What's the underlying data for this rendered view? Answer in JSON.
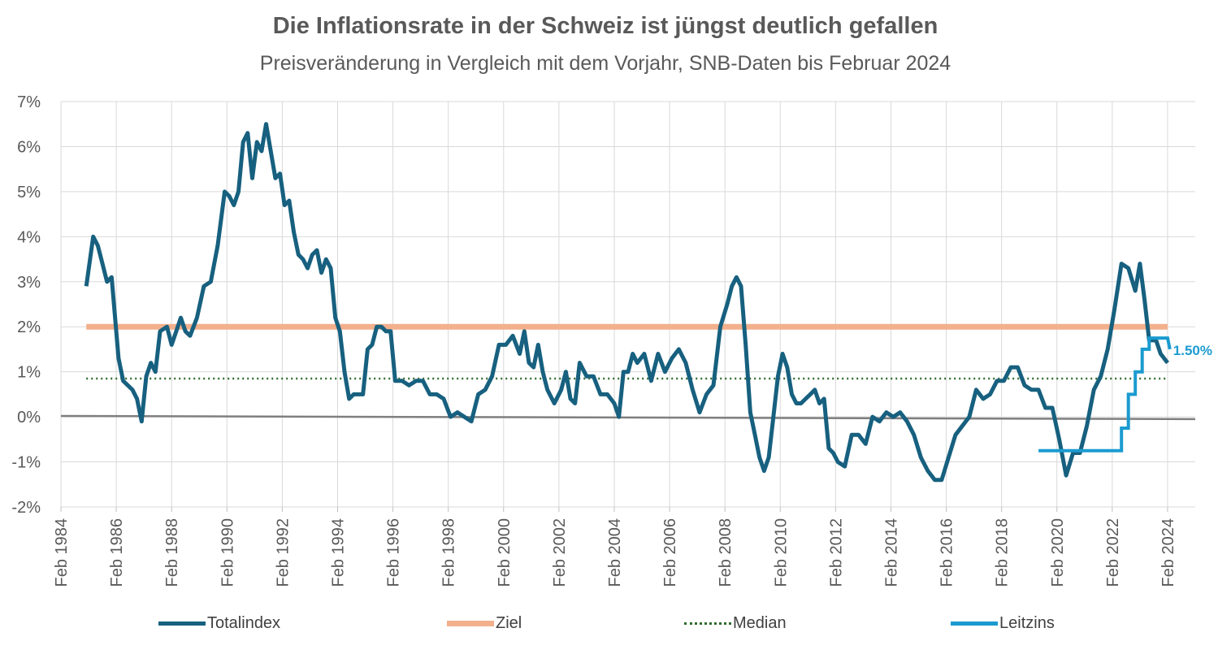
{
  "title": "Die Inflationsrate in der Schweiz ist jüngst deutlich gefallen",
  "subtitle": "Preisveränderung in Vergleich mit dem Vorjahr, SNB-Daten bis Februar 2024",
  "colors": {
    "totalindex": "#17607f",
    "ziel": "#f2b08c",
    "median": "#2f6b2f",
    "leitzins": "#1b9bd0",
    "zero_line": "#7f7f7f",
    "grid": "#d9d9d9",
    "text": "#595959"
  },
  "chart_data": {
    "type": "line",
    "title": "Die Inflationsrate in der Schweiz ist jüngst deutlich gefallen",
    "subtitle": "Preisveränderung in Vergleich mit dem Vorjahr, SNB-Daten bis Februar 2024",
    "xlim": [
      "1984-02",
      "2025-02"
    ],
    "ylim": [
      -2,
      7
    ],
    "y_unit": "%",
    "y_ticks": [
      "7%",
      "6%",
      "5%",
      "4%",
      "3%",
      "2%",
      "1%",
      "0%",
      "-1%",
      "-2%"
    ],
    "x_ticks": [
      "Feb 1984",
      "Feb 1986",
      "Feb 1988",
      "Feb 1990",
      "Feb 1992",
      "Feb 1994",
      "Feb 1996",
      "Feb 1998",
      "Feb 2000",
      "Feb 2002",
      "Feb 2004",
      "Feb 2006",
      "Feb 2008",
      "Feb 2010",
      "Feb 2012",
      "Feb 2014",
      "Feb 2016",
      "Feb 2018",
      "Feb 2020",
      "Feb 2022",
      "Feb 2024"
    ],
    "grid": true,
    "legend_position": "bottom",
    "annotation": "1.50%",
    "series": [
      {
        "name": "Totalindex",
        "points": [
          [
            "1985-01",
            2.9
          ],
          [
            "1985-04",
            4.0
          ],
          [
            "1985-06",
            3.8
          ],
          [
            "1985-08",
            3.4
          ],
          [
            "1985-10",
            3.0
          ],
          [
            "1985-12",
            3.1
          ],
          [
            "1986-03",
            1.3
          ],
          [
            "1986-05",
            0.8
          ],
          [
            "1986-07",
            0.7
          ],
          [
            "1986-09",
            0.6
          ],
          [
            "1986-11",
            0.4
          ],
          [
            "1987-01",
            -0.1
          ],
          [
            "1987-03",
            0.9
          ],
          [
            "1987-05",
            1.2
          ],
          [
            "1987-07",
            1.0
          ],
          [
            "1987-09",
            1.9
          ],
          [
            "1987-12",
            2.0
          ],
          [
            "1988-02",
            1.6
          ],
          [
            "1988-04",
            1.9
          ],
          [
            "1988-06",
            2.2
          ],
          [
            "1988-08",
            1.9
          ],
          [
            "1988-10",
            1.8
          ],
          [
            "1989-01",
            2.2
          ],
          [
            "1989-04",
            2.9
          ],
          [
            "1989-07",
            3.0
          ],
          [
            "1989-10",
            3.8
          ],
          [
            "1990-01",
            5.0
          ],
          [
            "1990-03",
            4.9
          ],
          [
            "1990-05",
            4.7
          ],
          [
            "1990-07",
            5.0
          ],
          [
            "1990-09",
            6.1
          ],
          [
            "1990-11",
            6.3
          ],
          [
            "1991-01",
            5.3
          ],
          [
            "1991-03",
            6.1
          ],
          [
            "1991-05",
            5.9
          ],
          [
            "1991-07",
            6.5
          ],
          [
            "1991-09",
            5.9
          ],
          [
            "1991-11",
            5.3
          ],
          [
            "1992-01",
            5.4
          ],
          [
            "1992-03",
            4.7
          ],
          [
            "1992-05",
            4.8
          ],
          [
            "1992-07",
            4.1
          ],
          [
            "1992-09",
            3.6
          ],
          [
            "1992-11",
            3.5
          ],
          [
            "1993-01",
            3.3
          ],
          [
            "1993-03",
            3.6
          ],
          [
            "1993-05",
            3.7
          ],
          [
            "1993-07",
            3.2
          ],
          [
            "1993-09",
            3.5
          ],
          [
            "1993-11",
            3.3
          ],
          [
            "1994-01",
            2.2
          ],
          [
            "1994-03",
            1.9
          ],
          [
            "1994-05",
            1.0
          ],
          [
            "1994-07",
            0.4
          ],
          [
            "1994-09",
            0.5
          ],
          [
            "1994-11",
            0.5
          ],
          [
            "1995-01",
            0.5
          ],
          [
            "1995-03",
            1.5
          ],
          [
            "1995-05",
            1.6
          ],
          [
            "1995-07",
            2.0
          ],
          [
            "1995-09",
            2.0
          ],
          [
            "1995-11",
            1.9
          ],
          [
            "1996-01",
            1.9
          ],
          [
            "1996-03",
            0.8
          ],
          [
            "1996-06",
            0.8
          ],
          [
            "1996-09",
            0.7
          ],
          [
            "1996-12",
            0.8
          ],
          [
            "1997-03",
            0.8
          ],
          [
            "1997-06",
            0.5
          ],
          [
            "1997-09",
            0.5
          ],
          [
            "1997-12",
            0.4
          ],
          [
            "1998-03",
            0.0
          ],
          [
            "1998-06",
            0.1
          ],
          [
            "1998-09",
            0.0
          ],
          [
            "1998-12",
            -0.1
          ],
          [
            "1999-03",
            0.5
          ],
          [
            "1999-06",
            0.6
          ],
          [
            "1999-09",
            0.9
          ],
          [
            "1999-12",
            1.6
          ],
          [
            "2000-03",
            1.6
          ],
          [
            "2000-06",
            1.8
          ],
          [
            "2000-09",
            1.4
          ],
          [
            "2000-11",
            1.9
          ],
          [
            "2001-01",
            1.2
          ],
          [
            "2001-03",
            1.1
          ],
          [
            "2001-05",
            1.6
          ],
          [
            "2001-07",
            1.0
          ],
          [
            "2001-09",
            0.6
          ],
          [
            "2001-12",
            0.3
          ],
          [
            "2002-03",
            0.6
          ],
          [
            "2002-05",
            1.0
          ],
          [
            "2002-07",
            0.4
          ],
          [
            "2002-09",
            0.3
          ],
          [
            "2002-11",
            1.2
          ],
          [
            "2003-02",
            0.9
          ],
          [
            "2003-05",
            0.9
          ],
          [
            "2003-08",
            0.5
          ],
          [
            "2003-11",
            0.5
          ],
          [
            "2004-02",
            0.3
          ],
          [
            "2004-04",
            0.0
          ],
          [
            "2004-06",
            1.0
          ],
          [
            "2004-08",
            1.0
          ],
          [
            "2004-10",
            1.4
          ],
          [
            "2004-12",
            1.2
          ],
          [
            "2005-03",
            1.4
          ],
          [
            "2005-06",
            0.8
          ],
          [
            "2005-09",
            1.4
          ],
          [
            "2005-12",
            1.0
          ],
          [
            "2006-03",
            1.3
          ],
          [
            "2006-06",
            1.5
          ],
          [
            "2006-09",
            1.2
          ],
          [
            "2006-12",
            0.6
          ],
          [
            "2007-03",
            0.1
          ],
          [
            "2007-06",
            0.5
          ],
          [
            "2007-09",
            0.7
          ],
          [
            "2007-12",
            2.0
          ],
          [
            "2008-03",
            2.5
          ],
          [
            "2008-05",
            2.9
          ],
          [
            "2008-07",
            3.1
          ],
          [
            "2008-09",
            2.9
          ],
          [
            "2008-11",
            1.6
          ],
          [
            "2009-01",
            0.1
          ],
          [
            "2009-03",
            -0.4
          ],
          [
            "2009-05",
            -0.9
          ],
          [
            "2009-07",
            -1.2
          ],
          [
            "2009-09",
            -0.9
          ],
          [
            "2009-11",
            0.0
          ],
          [
            "2010-01",
            0.9
          ],
          [
            "2010-03",
            1.4
          ],
          [
            "2010-05",
            1.1
          ],
          [
            "2010-07",
            0.5
          ],
          [
            "2010-09",
            0.3
          ],
          [
            "2010-11",
            0.3
          ],
          [
            "2011-01",
            0.4
          ],
          [
            "2011-03",
            0.5
          ],
          [
            "2011-05",
            0.6
          ],
          [
            "2011-07",
            0.3
          ],
          [
            "2011-09",
            0.4
          ],
          [
            "2011-11",
            -0.7
          ],
          [
            "2012-01",
            -0.8
          ],
          [
            "2012-03",
            -1.0
          ],
          [
            "2012-06",
            -1.1
          ],
          [
            "2012-09",
            -0.4
          ],
          [
            "2012-12",
            -0.4
          ],
          [
            "2013-03",
            -0.6
          ],
          [
            "2013-06",
            0.0
          ],
          [
            "2013-09",
            -0.1
          ],
          [
            "2013-12",
            0.1
          ],
          [
            "2014-03",
            0.0
          ],
          [
            "2014-06",
            0.1
          ],
          [
            "2014-09",
            -0.1
          ],
          [
            "2014-12",
            -0.4
          ],
          [
            "2015-03",
            -0.9
          ],
          [
            "2015-06",
            -1.2
          ],
          [
            "2015-09",
            -1.4
          ],
          [
            "2015-12",
            -1.4
          ],
          [
            "2016-03",
            -0.9
          ],
          [
            "2016-06",
            -0.4
          ],
          [
            "2016-09",
            -0.2
          ],
          [
            "2016-12",
            0.0
          ],
          [
            "2017-03",
            0.6
          ],
          [
            "2017-06",
            0.4
          ],
          [
            "2017-09",
            0.5
          ],
          [
            "2017-12",
            0.8
          ],
          [
            "2018-03",
            0.8
          ],
          [
            "2018-06",
            1.1
          ],
          [
            "2018-09",
            1.1
          ],
          [
            "2018-12",
            0.7
          ],
          [
            "2019-03",
            0.6
          ],
          [
            "2019-06",
            0.6
          ],
          [
            "2019-09",
            0.2
          ],
          [
            "2019-12",
            0.2
          ],
          [
            "2020-03",
            -0.5
          ],
          [
            "2020-06",
            -1.3
          ],
          [
            "2020-09",
            -0.8
          ],
          [
            "2020-12",
            -0.8
          ],
          [
            "2021-03",
            -0.2
          ],
          [
            "2021-06",
            0.6
          ],
          [
            "2021-09",
            0.9
          ],
          [
            "2021-12",
            1.5
          ],
          [
            "2022-03",
            2.4
          ],
          [
            "2022-06",
            3.4
          ],
          [
            "2022-09",
            3.3
          ],
          [
            "2022-12",
            2.8
          ],
          [
            "2023-02",
            3.4
          ],
          [
            "2023-04",
            2.6
          ],
          [
            "2023-06",
            1.7
          ],
          [
            "2023-09",
            1.7
          ],
          [
            "2023-11",
            1.4
          ],
          [
            "2024-02",
            1.2
          ]
        ]
      },
      {
        "name": "Ziel",
        "points": [
          [
            "1985-01",
            2.0
          ],
          [
            "2024-02",
            2.0
          ]
        ]
      },
      {
        "name": "Median",
        "points": [
          [
            "1985-01",
            0.85
          ],
          [
            "2024-02",
            0.85
          ]
        ]
      },
      {
        "name": "Leitzins",
        "points": [
          [
            "2019-06",
            -0.75
          ],
          [
            "2022-06",
            -0.75
          ],
          [
            "2022-06",
            -0.25
          ],
          [
            "2022-09",
            -0.25
          ],
          [
            "2022-09",
            0.5
          ],
          [
            "2022-12",
            0.5
          ],
          [
            "2022-12",
            1.0
          ],
          [
            "2023-03",
            1.0
          ],
          [
            "2023-03",
            1.5
          ],
          [
            "2023-06",
            1.5
          ],
          [
            "2023-06",
            1.75
          ],
          [
            "2024-02",
            1.75
          ],
          [
            "2024-03",
            1.5
          ]
        ]
      }
    ],
    "zero_line": [
      [
        "1984-02",
        0.02
      ],
      [
        "2025-02",
        -0.05
      ]
    ]
  }
}
